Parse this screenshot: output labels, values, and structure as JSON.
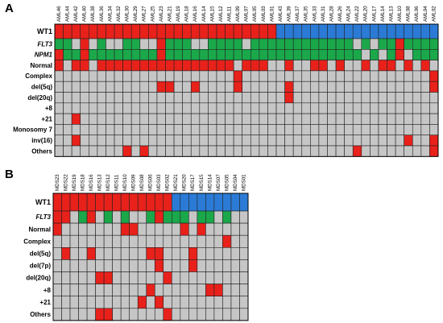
{
  "colors": {
    "wt1_mutant": "#E8211B",
    "wt1_wildtype": "#2B7BD6",
    "mut_green": "#1BA84A",
    "grid_gray": "#C6C6C6",
    "hit_red": "#E8211B",
    "grid_line": "#222222"
  },
  "panel_a": {
    "label": "A",
    "samples": [
      "AML46",
      "AML44",
      "AML42",
      "AML40",
      "AML38",
      "AML36",
      "AML34",
      "AML32",
      "AML30",
      "AML29",
      "AML27",
      "AML25",
      "AML23",
      "AML21",
      "AML19",
      "AML18",
      "AML16",
      "AML14",
      "AML15",
      "AML12",
      "AML11",
      "AML09",
      "AML07",
      "AML05",
      "AML03",
      "AML01",
      "AML43",
      "AML39",
      "AML37",
      "AML35",
      "AML33",
      "AML31",
      "AML28",
      "AML26",
      "AML24",
      "AML22",
      "AML20",
      "AML17",
      "AML14",
      "AML13",
      "AML10",
      "AML08",
      "AML06",
      "AML04",
      "AML02"
    ],
    "rows": [
      {
        "name": "WT1",
        "style": "bold"
      },
      {
        "name": "FLT3",
        "style": "bold-italic"
      },
      {
        "name": "NPM1",
        "style": "bold-italic"
      },
      {
        "name": "Normal",
        "style": "bold"
      },
      {
        "name": "Complex",
        "style": "bold"
      },
      {
        "name": "del(5q)",
        "style": "bold"
      },
      {
        "name": "del(20q)",
        "style": "bold"
      },
      {
        "name": "+8",
        "style": "bold"
      },
      {
        "name": "+21",
        "style": "bold"
      },
      {
        "name": "Monosomy 7",
        "style": "bold"
      },
      {
        "name": "inv(16)",
        "style": "bold"
      },
      {
        "name": "Others",
        "style": "bold"
      }
    ],
    "wt1_mutant_count": 26,
    "flt3_mutated": [
      0,
      1,
      3,
      5,
      8,
      9,
      12,
      13,
      14,
      15,
      18,
      19,
      20,
      21,
      23,
      24,
      25,
      26,
      27,
      28,
      29,
      30,
      31,
      32,
      33,
      34,
      36,
      38,
      39,
      40,
      41,
      42,
      43,
      44
    ],
    "npm1_mutated": [
      0,
      1,
      2,
      3,
      4,
      5,
      6,
      7,
      8,
      9,
      10,
      11,
      12,
      13,
      14,
      15,
      16,
      17,
      18,
      19,
      20,
      21,
      22,
      23,
      24,
      25,
      26,
      27,
      28,
      29,
      30,
      31,
      32,
      33,
      34,
      35,
      37,
      39,
      40,
      42,
      43,
      44
    ],
    "hits": {
      "FLT3": [
        3,
        12,
        40
      ],
      "NPM1": [
        0,
        3,
        12,
        40
      ],
      "Normal": [
        0,
        2,
        3,
        5,
        6,
        7,
        8,
        9,
        10,
        11,
        12,
        13,
        14,
        15,
        16,
        17,
        18,
        19,
        20,
        22,
        23,
        24,
        27,
        30,
        31,
        33,
        36,
        38,
        39,
        41,
        43
      ],
      "Complex": [
        21,
        44
      ],
      "del(5q)": [
        12,
        13,
        16,
        21,
        27,
        44
      ],
      "del(20q)": [
        27
      ],
      "+8": [],
      "+21": [
        2
      ],
      "Monosomy 7": [],
      "inv(16)": [
        2,
        41,
        44
      ],
      "Others": [
        8,
        10,
        35,
        44
      ]
    }
  },
  "panel_b": {
    "label": "B",
    "samples": [
      "MDS23",
      "MDS22",
      "MDS19",
      "MDS18",
      "MDS16",
      "MDS13",
      "MDS12",
      "MDS11",
      "MDS10",
      "MDS09",
      "MDS08",
      "MDS06",
      "MDS03",
      "MDS02",
      "MDS21",
      "MDS20",
      "MDS17",
      "MDS15",
      "MDS14",
      "MDS07",
      "MDS05",
      "MDS04",
      "MDS01"
    ],
    "rows": [
      {
        "name": "WT1",
        "style": "bold"
      },
      {
        "name": "FLT3",
        "style": "bold-italic"
      },
      {
        "name": "Normal",
        "style": "bold"
      },
      {
        "name": "Complex",
        "style": "bold"
      },
      {
        "name": "del(5q)",
        "style": "bold"
      },
      {
        "name": "del(7p)",
        "style": "bold"
      },
      {
        "name": "del(20q)",
        "style": "bold"
      },
      {
        "name": "+8",
        "style": "bold"
      },
      {
        "name": "+21",
        "style": "bold"
      },
      {
        "name": "Others",
        "style": "bold"
      }
    ],
    "wt1_mutant_count": 14,
    "flt3_mutated": [
      0,
      1,
      3,
      4,
      6,
      8,
      11,
      12,
      13,
      14,
      15,
      17,
      18,
      20
    ],
    "hits": {
      "FLT3": [
        0,
        1,
        4,
        12
      ],
      "Normal": [
        0,
        8,
        9,
        15,
        17
      ],
      "Complex": [
        20
      ],
      "del(5q)": [
        1,
        4,
        11,
        12,
        16
      ],
      "del(7p)": [
        12,
        16
      ],
      "del(20q)": [
        5,
        6,
        13
      ],
      "+8": [
        11,
        18,
        19
      ],
      "+21": [
        10,
        12
      ],
      "Others": [
        5,
        6,
        13
      ]
    }
  }
}
